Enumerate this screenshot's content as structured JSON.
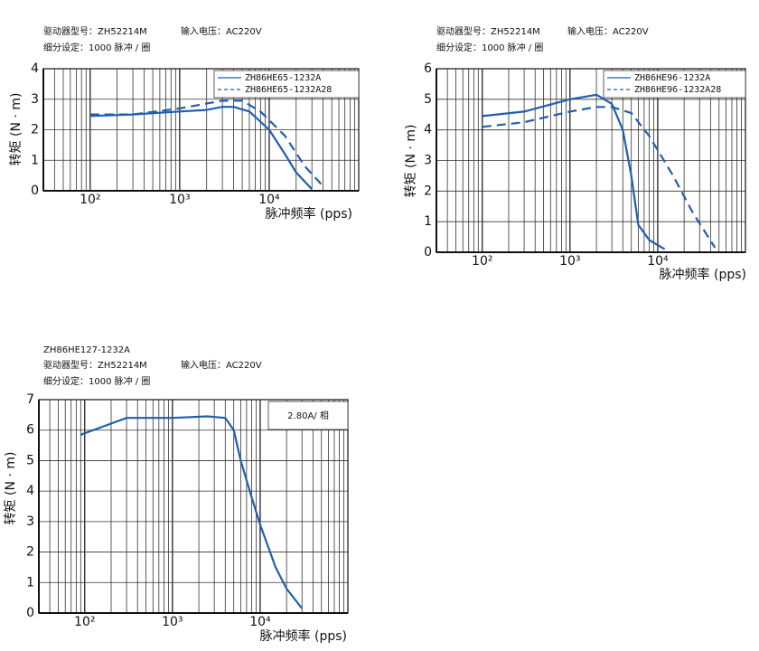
{
  "chart_data": [
    {
      "type": "line",
      "log_x": true,
      "grid": true,
      "annotations": [
        "驱动器型号：ZH52214M",
        "输入电压：AC220V",
        "细分设定：1000 脉冲 / 圈"
      ],
      "x_label": "脉冲频率 (pps)",
      "y_label": "转矩 (N · m)",
      "xlim": [
        30,
        100000
      ],
      "ylim": [
        0,
        4
      ],
      "xticks": [
        {
          "value": 100,
          "label": "10²"
        },
        {
          "value": 1000,
          "label": "10³"
        },
        {
          "value": 10000,
          "label": "10⁴"
        }
      ],
      "x_minor_ticks": [
        30,
        40,
        50,
        60,
        70,
        80,
        90,
        200,
        300,
        400,
        500,
        600,
        700,
        800,
        900,
        2000,
        3000,
        4000,
        5000,
        6000,
        7000,
        8000,
        9000,
        20000,
        30000,
        40000,
        50000,
        60000,
        70000,
        80000,
        90000
      ],
      "yticks": [
        0,
        1,
        2,
        3,
        4
      ],
      "series": [
        {
          "name": "ZH86HE65-1232A",
          "color": "#1f5fae",
          "dashed": false,
          "x": [
            100,
            300,
            1000,
            2000,
            3000,
            4000,
            6000,
            10000,
            15000,
            20000,
            30000
          ],
          "values": [
            2.45,
            2.5,
            2.6,
            2.65,
            2.75,
            2.75,
            2.6,
            2.0,
            1.2,
            0.6,
            0.05
          ]
        },
        {
          "name": "ZH86HE65-1232A28",
          "color": "#1f5fae",
          "dashed": true,
          "x": [
            100,
            300,
            1000,
            3000,
            5000,
            8000,
            15000,
            25000,
            40000
          ],
          "values": [
            2.5,
            2.5,
            2.7,
            2.95,
            2.95,
            2.6,
            1.8,
            0.8,
            0.15
          ]
        }
      ]
    },
    {
      "type": "line",
      "log_x": true,
      "grid": true,
      "annotations": [
        "驱动器型号：ZH52214M",
        "输入电压：AC220V",
        "细分设定：1000 脉冲 / 圈"
      ],
      "x_label": "脉冲频率 (pps)",
      "y_label": "转矩 (N · m)",
      "xlim": [
        30,
        100000
      ],
      "ylim": [
        0,
        6
      ],
      "xticks": [
        {
          "value": 100,
          "label": "10²"
        },
        {
          "value": 1000,
          "label": "10³"
        },
        {
          "value": 10000,
          "label": "10⁴"
        }
      ],
      "x_minor_ticks": [
        30,
        40,
        50,
        60,
        70,
        80,
        90,
        200,
        300,
        400,
        500,
        600,
        700,
        800,
        900,
        2000,
        3000,
        4000,
        5000,
        6000,
        7000,
        8000,
        9000,
        20000,
        30000,
        40000,
        50000,
        60000,
        70000,
        80000,
        90000
      ],
      "yticks": [
        0,
        1,
        2,
        3,
        4,
        5,
        6
      ],
      "series": [
        {
          "name": "ZH86HE96-1232A",
          "color": "#1f5fae",
          "dashed": false,
          "x": [
            100,
            300,
            1000,
            2000,
            3000,
            4000,
            5000,
            6000,
            8000,
            12000
          ],
          "values": [
            4.45,
            4.6,
            5.0,
            5.15,
            4.85,
            4.0,
            2.5,
            0.9,
            0.4,
            0.1
          ]
        },
        {
          "name": "ZH86HE96-1232A28",
          "color": "#1f5fae",
          "dashed": true,
          "x": [
            100,
            300,
            1000,
            2000,
            3000,
            5000,
            8000,
            15000,
            25000,
            45000
          ],
          "values": [
            4.1,
            4.25,
            4.6,
            4.75,
            4.75,
            4.55,
            3.8,
            2.5,
            1.3,
            0.15
          ]
        }
      ]
    },
    {
      "type": "line",
      "log_x": true,
      "grid": true,
      "title": "ZH86HE127-1232A",
      "annotations": [
        "驱动器型号：ZH52214M",
        "输入电压：AC220V",
        "细分设定：1000 脉冲 / 圈",
        "2.80A/ 相"
      ],
      "x_label": "脉冲频率 (pps)",
      "y_label": "转矩 (N · m)",
      "xlim": [
        30,
        100000
      ],
      "ylim": [
        0,
        7
      ],
      "xticks": [
        {
          "value": 100,
          "label": "10²"
        },
        {
          "value": 1000,
          "label": "10³"
        },
        {
          "value": 10000,
          "label": "10⁴"
        }
      ],
      "x_minor_ticks": [
        30,
        40,
        50,
        60,
        70,
        80,
        90,
        200,
        300,
        400,
        500,
        600,
        700,
        800,
        900,
        2000,
        3000,
        4000,
        5000,
        6000,
        7000,
        8000,
        9000,
        20000,
        30000,
        40000,
        50000,
        60000,
        70000,
        80000,
        90000
      ],
      "yticks": [
        0,
        1,
        2,
        3,
        4,
        5,
        6,
        7
      ],
      "series": [
        {
          "color": "#1f5fae",
          "dashed": false,
          "x": [
            90,
            300,
            1000,
            2500,
            4000,
            5000,
            6000,
            8000,
            10000,
            15000,
            20000,
            30000
          ],
          "values": [
            5.85,
            6.4,
            6.4,
            6.45,
            6.4,
            6.0,
            5.0,
            3.8,
            2.9,
            1.5,
            0.8,
            0.15
          ]
        }
      ]
    }
  ]
}
